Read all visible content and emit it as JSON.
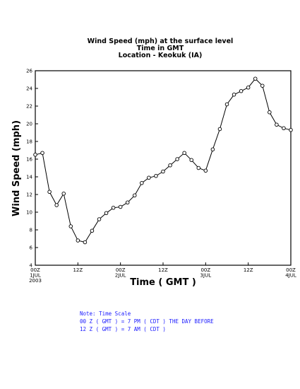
{
  "chart_data": {
    "type": "line",
    "title_lines": [
      "Wind Speed (mph) at the surface level",
      "Time in GMT",
      "Location - Keokuk (IA)"
    ],
    "xlabel": "Time ( GMT )",
    "ylabel": "Wind Speed (mph)",
    "ylim": [
      4,
      26
    ],
    "yticks": [
      4,
      6,
      8,
      10,
      12,
      14,
      16,
      18,
      20,
      22,
      24,
      26
    ],
    "xlim": [
      0,
      72
    ],
    "xticks": [
      {
        "x": 0,
        "lines": [
          "00Z",
          "1JUL",
          "2003"
        ]
      },
      {
        "x": 12,
        "lines": [
          "12Z"
        ]
      },
      {
        "x": 24,
        "lines": [
          "00Z",
          "2JUL"
        ]
      },
      {
        "x": 36,
        "lines": [
          "12Z"
        ]
      },
      {
        "x": 48,
        "lines": [
          "00Z",
          "3JUL"
        ]
      },
      {
        "x": 60,
        "lines": [
          "12Z"
        ]
      },
      {
        "x": 72,
        "lines": [
          "00Z",
          "4JUL"
        ]
      }
    ],
    "grid": false,
    "legend": "none",
    "line_color": "#000000",
    "marker": "open-circle",
    "series": [
      {
        "x": [
          0,
          2,
          4,
          6,
          8,
          10,
          12,
          14,
          16,
          18,
          20,
          22,
          24,
          26,
          28,
          30,
          32,
          34,
          36,
          38,
          40,
          42,
          44,
          46,
          48,
          50,
          52,
          54,
          56,
          58,
          60,
          62,
          64,
          66,
          68,
          70,
          72
        ],
        "y": [
          16.5,
          16.7,
          12.3,
          10.8,
          12.1,
          8.4,
          6.8,
          6.6,
          7.9,
          9.2,
          9.9,
          10.5,
          10.6,
          11.1,
          11.9,
          13.3,
          13.9,
          14.1,
          14.6,
          15.3,
          16.0,
          16.7,
          15.9,
          15.0,
          14.7,
          17.1,
          19.4,
          22.2,
          23.3,
          23.7,
          24.1,
          25.1,
          24.3,
          21.3,
          19.9,
          19.5,
          19.3
        ]
      }
    ]
  },
  "notes": {
    "line1": "Note: Time Scale",
    "line2": "00 Z ( GMT ) = 7 PM ( CDT ) THE DAY BEFORE",
    "line3": "12 Z ( GMT ) = 7 AM ( CDT )"
  }
}
